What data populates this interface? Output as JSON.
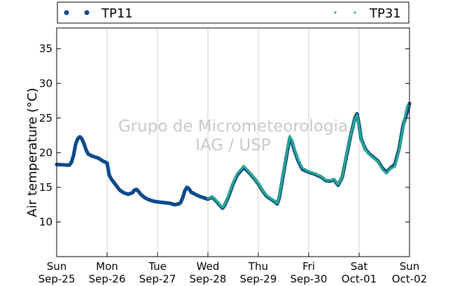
{
  "chart_data": {
    "type": "scatter",
    "title": "",
    "xlabel": "",
    "ylabel": "Air temperature (°C)",
    "ylim": [
      5,
      38
    ],
    "xlim": [
      "2022-09-25 00:00",
      "2022-10-02 00:00"
    ],
    "yticks": [
      10,
      15,
      20,
      25,
      30,
      35
    ],
    "xticks": [
      {
        "day": "Sun",
        "date": "Sep-25"
      },
      {
        "day": "Mon",
        "date": "Sep-26"
      },
      {
        "day": "Tue",
        "date": "Sep-27"
      },
      {
        "day": "Wed",
        "date": "Sep-28"
      },
      {
        "day": "Thu",
        "date": "Sep-29"
      },
      {
        "day": "Fri",
        "date": "Sep-30"
      },
      {
        "day": "Sat",
        "date": "Oct-01"
      },
      {
        "day": "Sun",
        "date": "Oct-02"
      }
    ],
    "grid": "vertical",
    "legend": "top",
    "watermark": [
      "Grupo de Micrometeorologia",
      "IAG / USP"
    ],
    "series": [
      {
        "name": "TP11",
        "color": "#0b4a8b",
        "marker": "circle",
        "points": [
          [
            "2022-09-25 00:00",
            18.3
          ],
          [
            "2022-09-25 06:00",
            18.2
          ],
          [
            "2022-09-25 07:00",
            18.6
          ],
          [
            "2022-09-25 08:00",
            19.6
          ],
          [
            "2022-09-25 09:00",
            21.2
          ],
          [
            "2022-09-25 10:00",
            22.0
          ],
          [
            "2022-09-25 11:00",
            22.3
          ],
          [
            "2022-09-25 12:00",
            22.0
          ],
          [
            "2022-09-25 13:00",
            21.3
          ],
          [
            "2022-09-25 14:00",
            20.4
          ],
          [
            "2022-09-25 15:00",
            19.8
          ],
          [
            "2022-09-25 17:00",
            19.5
          ],
          [
            "2022-09-25 20:00",
            19.2
          ],
          [
            "2022-09-25 22:00",
            18.8
          ],
          [
            "2022-09-26 00:00",
            18.5
          ],
          [
            "2022-09-26 01:00",
            16.8
          ],
          [
            "2022-09-26 02:00",
            16.2
          ],
          [
            "2022-09-26 03:00",
            15.8
          ],
          [
            "2022-09-26 04:00",
            15.4
          ],
          [
            "2022-09-26 05:00",
            15.0
          ],
          [
            "2022-09-26 06:00",
            14.6
          ],
          [
            "2022-09-26 08:00",
            14.2
          ],
          [
            "2022-09-26 10:00",
            14.0
          ],
          [
            "2022-09-26 12:00",
            14.2
          ],
          [
            "2022-09-26 13:00",
            14.6
          ],
          [
            "2022-09-26 14:00",
            14.7
          ],
          [
            "2022-09-26 15:00",
            14.4
          ],
          [
            "2022-09-26 16:00",
            14.0
          ],
          [
            "2022-09-26 18:00",
            13.5
          ],
          [
            "2022-09-26 20:00",
            13.2
          ],
          [
            "2022-09-26 22:00",
            13.0
          ],
          [
            "2022-09-27 00:00",
            12.9
          ],
          [
            "2022-09-27 03:00",
            12.8
          ],
          [
            "2022-09-27 06:00",
            12.7
          ],
          [
            "2022-09-27 08:00",
            12.5
          ],
          [
            "2022-09-27 10:00",
            12.6
          ],
          [
            "2022-09-27 11:00",
            12.8
          ],
          [
            "2022-09-27 12:00",
            13.5
          ],
          [
            "2022-09-27 13:00",
            14.5
          ],
          [
            "2022-09-27 14:00",
            15.0
          ],
          [
            "2022-09-27 15:00",
            14.8
          ],
          [
            "2022-09-27 16:00",
            14.3
          ],
          [
            "2022-09-27 18:00",
            14.0
          ],
          [
            "2022-09-27 20:00",
            13.7
          ],
          [
            "2022-09-27 22:00",
            13.5
          ],
          [
            "2022-09-28 00:00",
            13.3
          ],
          [
            "2022-09-28 02:00",
            13.6
          ],
          [
            "2022-09-28 04:00",
            13.0
          ],
          [
            "2022-09-28 06:00",
            12.3
          ],
          [
            "2022-09-28 07:00",
            12.0
          ],
          [
            "2022-09-28 08:00",
            12.4
          ],
          [
            "2022-09-28 10:00",
            13.8
          ],
          [
            "2022-09-28 12:00",
            15.5
          ],
          [
            "2022-09-28 14:00",
            16.8
          ],
          [
            "2022-09-28 16:00",
            17.5
          ],
          [
            "2022-09-28 17:00",
            17.9
          ],
          [
            "2022-09-28 18:00",
            17.6
          ],
          [
            "2022-09-28 20:00",
            17.0
          ],
          [
            "2022-09-28 22:00",
            16.3
          ],
          [
            "2022-09-29 00:00",
            15.5
          ],
          [
            "2022-09-29 02:00",
            14.5
          ],
          [
            "2022-09-29 04:00",
            13.7
          ],
          [
            "2022-09-29 06:00",
            13.3
          ],
          [
            "2022-09-29 08:00",
            12.9
          ],
          [
            "2022-09-29 09:00",
            12.6
          ],
          [
            "2022-09-29 10:00",
            13.5
          ],
          [
            "2022-09-29 12:00",
            17.0
          ],
          [
            "2022-09-29 14:00",
            20.5
          ],
          [
            "2022-09-29 15:00",
            22.1
          ],
          [
            "2022-09-29 16:00",
            21.6
          ],
          [
            "2022-09-29 17:00",
            20.5
          ],
          [
            "2022-09-29 19:00",
            18.8
          ],
          [
            "2022-09-29 21:00",
            17.6
          ],
          [
            "2022-09-30 00:00",
            17.2
          ],
          [
            "2022-09-30 03:00",
            16.9
          ],
          [
            "2022-09-30 06:00",
            16.5
          ],
          [
            "2022-09-30 08:00",
            16.0
          ],
          [
            "2022-09-30 10:00",
            15.9
          ],
          [
            "2022-09-30 12:00",
            16.1
          ],
          [
            "2022-09-30 13:00",
            15.7
          ],
          [
            "2022-09-30 14:00",
            15.3
          ],
          [
            "2022-09-30 16:00",
            16.5
          ],
          [
            "2022-09-30 18:00",
            19.5
          ],
          [
            "2022-09-30 20:00",
            22.5
          ],
          [
            "2022-09-30 22:00",
            25.0
          ],
          [
            "2022-09-30 23:00",
            25.6
          ],
          [
            "2022-10-01 00:00",
            24.0
          ],
          [
            "2022-10-01 01:00",
            22.0
          ],
          [
            "2022-10-01 03:00",
            20.5
          ],
          [
            "2022-10-01 05:00",
            19.8
          ],
          [
            "2022-10-01 07:00",
            19.3
          ],
          [
            "2022-10-01 09:00",
            18.8
          ],
          [
            "2022-10-01 11:00",
            17.8
          ],
          [
            "2022-10-01 13:00",
            17.2
          ],
          [
            "2022-10-01 15:00",
            17.8
          ],
          [
            "2022-10-01 17:00",
            18.3
          ],
          [
            "2022-10-01 19:00",
            20.5
          ],
          [
            "2022-10-01 21:00",
            24.0
          ],
          [
            "2022-10-01 23:00",
            26.0
          ],
          [
            "2022-10-02 00:00",
            27.1
          ]
        ]
      },
      {
        "name": "TP31",
        "color": "#2aa88c",
        "marker": "dot",
        "points": [
          [
            "2022-09-28 00:00",
            13.4
          ],
          [
            "2022-09-28 02:00",
            13.7
          ],
          [
            "2022-09-28 04:00",
            13.1
          ],
          [
            "2022-09-28 06:00",
            12.4
          ],
          [
            "2022-09-28 07:00",
            12.1
          ],
          [
            "2022-09-28 08:00",
            12.5
          ],
          [
            "2022-09-28 10:00",
            14.0
          ],
          [
            "2022-09-28 12:00",
            15.7
          ],
          [
            "2022-09-28 14:00",
            17.0
          ],
          [
            "2022-09-28 16:00",
            17.7
          ],
          [
            "2022-09-28 17:00",
            18.1
          ],
          [
            "2022-09-28 18:00",
            17.8
          ],
          [
            "2022-09-28 20:00",
            17.1
          ],
          [
            "2022-09-28 22:00",
            16.4
          ],
          [
            "2022-09-29 00:00",
            15.6
          ],
          [
            "2022-09-29 02:00",
            14.6
          ],
          [
            "2022-09-29 04:00",
            13.8
          ],
          [
            "2022-09-29 06:00",
            13.4
          ],
          [
            "2022-09-29 08:00",
            13.0
          ],
          [
            "2022-09-29 09:00",
            12.7
          ],
          [
            "2022-09-29 10:00",
            13.7
          ],
          [
            "2022-09-29 12:00",
            17.3
          ],
          [
            "2022-09-29 14:00",
            20.8
          ],
          [
            "2022-09-29 15:00",
            22.4
          ],
          [
            "2022-09-29 16:00",
            21.8
          ],
          [
            "2022-09-29 17:00",
            20.7
          ],
          [
            "2022-09-29 19:00",
            19.0
          ],
          [
            "2022-09-29 21:00",
            17.8
          ],
          [
            "2022-09-30 00:00",
            17.3
          ],
          [
            "2022-09-30 03:00",
            17.0
          ],
          [
            "2022-09-30 06:00",
            16.6
          ],
          [
            "2022-09-30 08:00",
            16.1
          ],
          [
            "2022-09-30 10:00",
            16.0
          ],
          [
            "2022-09-30 12:00",
            16.2
          ],
          [
            "2022-09-30 13:00",
            15.8
          ],
          [
            "2022-09-30 14:00",
            15.4
          ],
          [
            "2022-09-30 16:00",
            16.6
          ],
          [
            "2022-09-30 18:00",
            19.7
          ],
          [
            "2022-09-30 20:00",
            22.6
          ],
          [
            "2022-09-30 22:00",
            24.8
          ],
          [
            "2022-09-30 23:00",
            25.4
          ],
          [
            "2022-10-01 00:00",
            23.8
          ],
          [
            "2022-10-01 01:00",
            21.9
          ],
          [
            "2022-10-01 03:00",
            20.4
          ],
          [
            "2022-10-01 05:00",
            19.7
          ],
          [
            "2022-10-01 07:00",
            19.2
          ],
          [
            "2022-10-01 09:00",
            18.7
          ],
          [
            "2022-10-01 11:00",
            17.6
          ],
          [
            "2022-10-01 13:00",
            17.0
          ],
          [
            "2022-10-01 15:00",
            17.7
          ],
          [
            "2022-10-01 17:00",
            18.0
          ],
          [
            "2022-10-01 19:00",
            20.2
          ],
          [
            "2022-10-01 21:00",
            23.6
          ],
          [
            "2022-10-01 22:00",
            25.5
          ],
          [
            "2022-10-01 23:00",
            26.8
          ],
          [
            "2022-10-02 00:00",
            26.7
          ]
        ]
      }
    ]
  }
}
